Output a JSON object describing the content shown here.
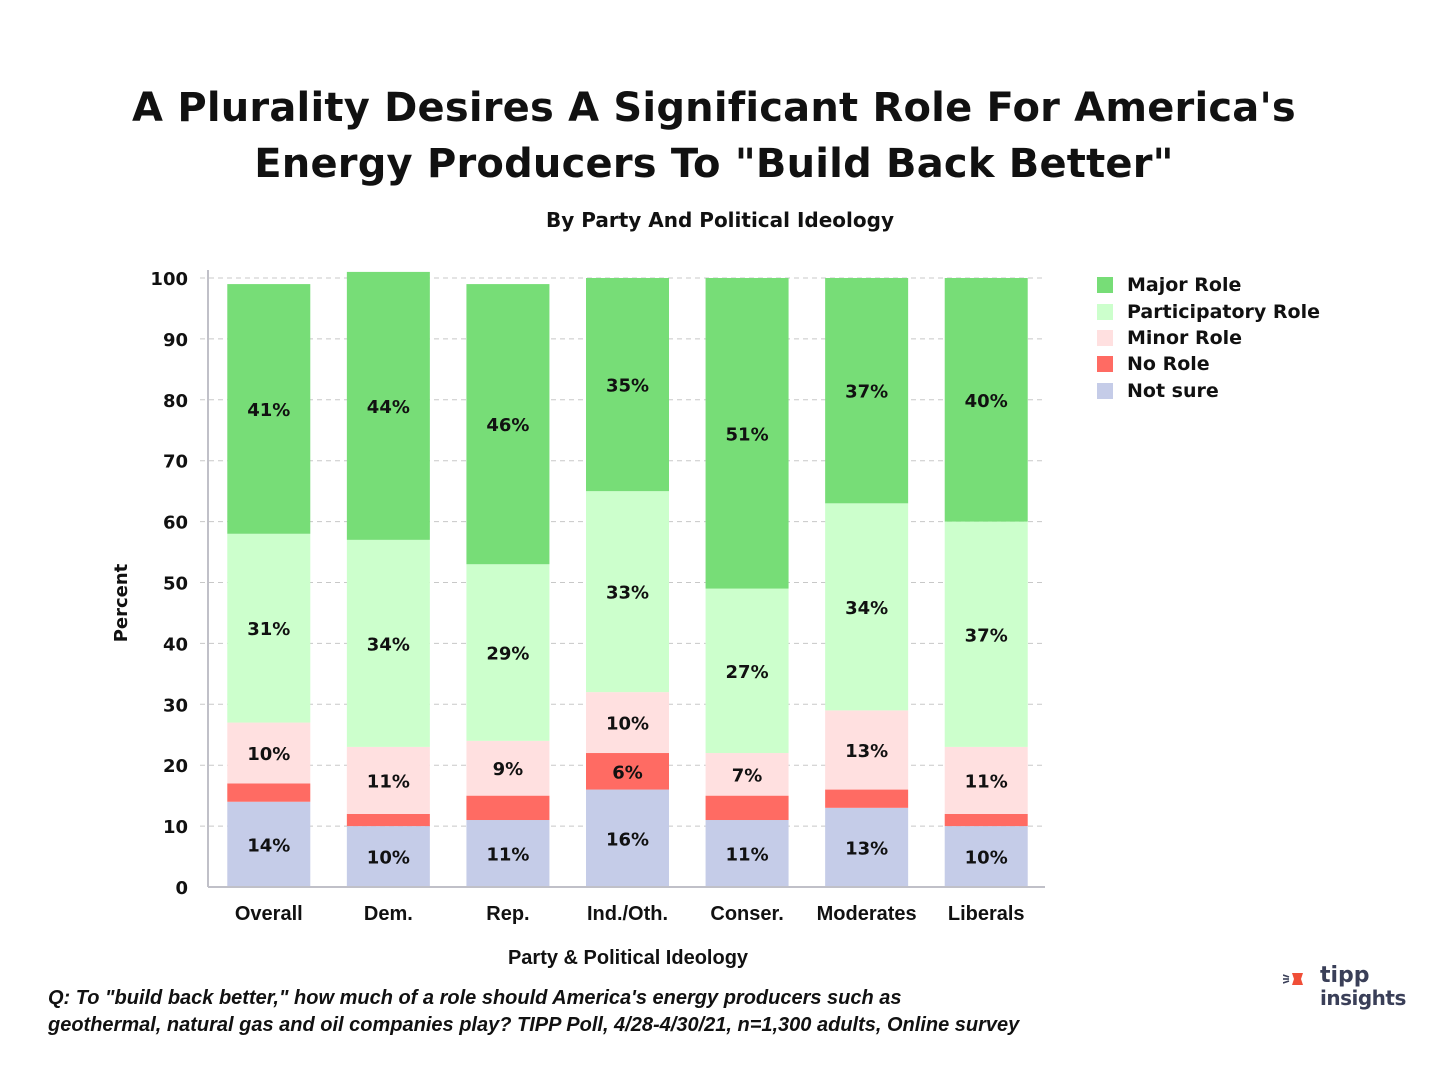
{
  "chart_data": {
    "type": "bar",
    "stacked": true,
    "title": "A Plurality Desires A Significant Role For America's Energy Producers To \"Build Back Better\"",
    "title_lines": [
      "A Plurality Desires A Significant Role For America's",
      "Energy Producers To \"Build Back Better\""
    ],
    "subtitle": "By Party And Political Ideology",
    "xlabel": "Party & Political Ideology",
    "ylabel": "Percent",
    "ylim": [
      0,
      100
    ],
    "yticks": [
      0,
      10,
      20,
      30,
      40,
      50,
      60,
      70,
      80,
      90,
      100
    ],
    "grid": true,
    "legend_position": "top-right",
    "categories": [
      "Overall",
      "Dem.",
      "Rep.",
      "Ind./Oth.",
      "Conser.",
      "Moderates",
      "Liberals"
    ],
    "series": [
      {
        "name": "Not sure",
        "color": "#c5cce8",
        "values": [
          14,
          10,
          11,
          16,
          11,
          13,
          10
        ],
        "labels": [
          "14%",
          "10%",
          "11%",
          "16%",
          "11%",
          "13%",
          "10%"
        ]
      },
      {
        "name": "No Role",
        "color": "#ff6b63",
        "values": [
          3,
          2,
          4,
          6,
          4,
          3,
          2
        ],
        "labels": [
          "",
          "",
          "",
          "6%",
          "",
          "",
          ""
        ]
      },
      {
        "name": "Minor Role",
        "color": "#ffe0e0",
        "values": [
          10,
          11,
          9,
          10,
          7,
          13,
          11
        ],
        "labels": [
          "10%",
          "11%",
          "9%",
          "10%",
          "7%",
          "13%",
          "11%"
        ]
      },
      {
        "name": "Participatory Role",
        "color": "#ccffcc",
        "values": [
          31,
          34,
          29,
          33,
          27,
          34,
          37
        ],
        "labels": [
          "31%",
          "34%",
          "29%",
          "33%",
          "27%",
          "34%",
          "37%"
        ]
      },
      {
        "name": "Major Role",
        "color": "#77dd77",
        "values": [
          41,
          44,
          46,
          35,
          51,
          37,
          40
        ],
        "labels": [
          "41%",
          "44%",
          "46%",
          "35%",
          "51%",
          "37%",
          "40%"
        ]
      }
    ],
    "legend_order": [
      "Major Role",
      "Participatory Role",
      "Minor Role",
      "No Role",
      "Not sure"
    ]
  },
  "footnote": {
    "line1": "Q:  To \"build back better,\" how much of a role should America's energy producers such as",
    "line2": "geothermal, natural gas and oil companies play? TIPP Poll, 4/28-4/30/21, n=1,300 adults, Online survey"
  },
  "logo": {
    "line1": "tipp",
    "line2": "insights",
    "mark_color": "#f04e37",
    "text_color": "#3a3f58"
  }
}
